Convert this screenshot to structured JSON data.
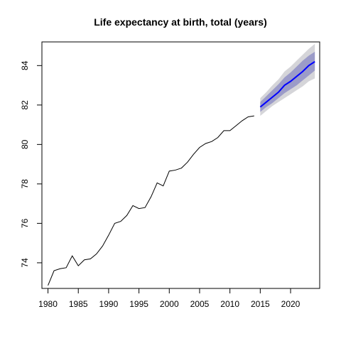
{
  "chart_data": {
    "type": "line",
    "title": "Life expectancy at birth, total (years)",
    "xlabel": "",
    "ylabel": "",
    "xlim": [
      1979,
      2024.8
    ],
    "ylim": [
      72.7,
      85.2
    ],
    "x_ticks": [
      1980,
      1985,
      1990,
      1995,
      2000,
      2005,
      2010,
      2015,
      2020
    ],
    "y_ticks": [
      74,
      76,
      78,
      80,
      82,
      84
    ],
    "grid": false,
    "legend": "none",
    "colors": {
      "history": "#000000",
      "forecast": "#0000ff",
      "band_80": "#9b9bc8",
      "band_95": "#d5d5d9"
    },
    "series": [
      {
        "kind": "history",
        "x": [
          1980,
          1981,
          1982,
          1983,
          1984,
          1985,
          1986,
          1987,
          1988,
          1989,
          1990,
          1991,
          1992,
          1993,
          1994,
          1995,
          1996,
          1997,
          1998,
          1999,
          2000,
          2001,
          2002,
          2003,
          2004,
          2005,
          2006,
          2007,
          2008,
          2009,
          2010,
          2011,
          2012,
          2013,
          2014
        ],
        "y": [
          72.85,
          73.6,
          73.7,
          73.75,
          74.35,
          73.85,
          74.15,
          74.2,
          74.45,
          74.85,
          75.4,
          76.0,
          76.1,
          76.4,
          76.9,
          76.75,
          76.8,
          77.35,
          78.05,
          77.9,
          78.65,
          78.7,
          78.8,
          79.1,
          79.5,
          79.85,
          80.05,
          80.15,
          80.35,
          80.7,
          80.7,
          80.95,
          81.2,
          81.4,
          81.45
        ]
      },
      {
        "kind": "forecast",
        "x": [
          2015,
          2016,
          2017,
          2018,
          2019,
          2020,
          2021,
          2022,
          2023,
          2024
        ],
        "y": [
          81.9,
          82.15,
          82.4,
          82.65,
          83.0,
          83.2,
          83.45,
          83.7,
          84.0,
          84.2
        ],
        "lo80": [
          81.65,
          81.9,
          82.1,
          82.35,
          82.6,
          82.8,
          83.0,
          83.25,
          83.5,
          83.75
        ],
        "hi80": [
          82.15,
          82.45,
          82.75,
          83.05,
          83.4,
          83.65,
          83.95,
          84.25,
          84.5,
          84.7
        ],
        "lo95": [
          81.45,
          81.7,
          81.95,
          82.15,
          82.35,
          82.55,
          82.75,
          82.95,
          83.2,
          83.35
        ],
        "hi95": [
          82.35,
          82.65,
          83.0,
          83.3,
          83.7,
          83.95,
          84.25,
          84.55,
          84.85,
          85.1
        ]
      }
    ]
  }
}
